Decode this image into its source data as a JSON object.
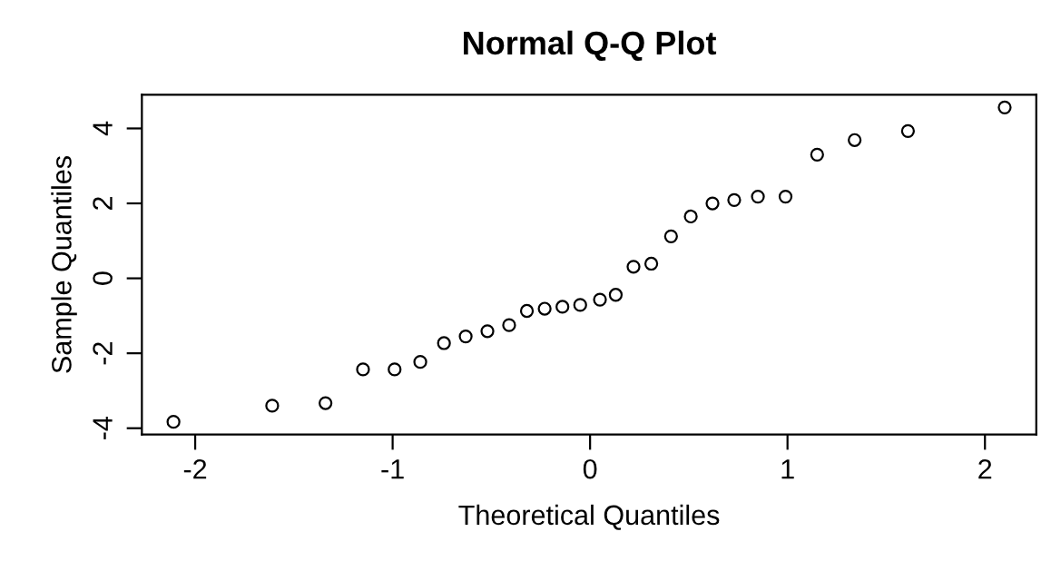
{
  "chart_data": {
    "type": "scatter",
    "title": "Normal Q-Q Plot",
    "xlabel": "Theoretical Quantiles",
    "ylabel": "Sample Quantiles",
    "x": [
      -2.11,
      -1.61,
      -1.34,
      -1.15,
      -0.99,
      -0.86,
      -0.74,
      -0.63,
      -0.52,
      -0.41,
      -0.32,
      -0.23,
      -0.14,
      -0.05,
      0.05,
      0.13,
      0.22,
      0.31,
      0.41,
      0.51,
      0.62,
      0.73,
      0.85,
      0.99,
      1.15,
      1.34,
      1.61,
      2.1
    ],
    "values": [
      -3.83,
      -3.4,
      -3.33,
      -2.43,
      -2.43,
      -2.23,
      -1.73,
      -1.55,
      -1.41,
      -1.25,
      -0.87,
      -0.81,
      -0.76,
      -0.71,
      -0.57,
      -0.44,
      0.31,
      0.39,
      1.12,
      1.65,
      2.0,
      2.09,
      2.18,
      2.18,
      3.3,
      3.69,
      3.93,
      4.56
    ],
    "color": "#000000",
    "marker": "circle",
    "grid": false,
    "xlim": [
      -2.27,
      2.26
    ],
    "ylim": [
      -4.17,
      4.9
    ],
    "xticks": [
      -2,
      -1,
      0,
      1,
      2
    ],
    "yticks": [
      -4,
      -2,
      0,
      2,
      4
    ]
  }
}
